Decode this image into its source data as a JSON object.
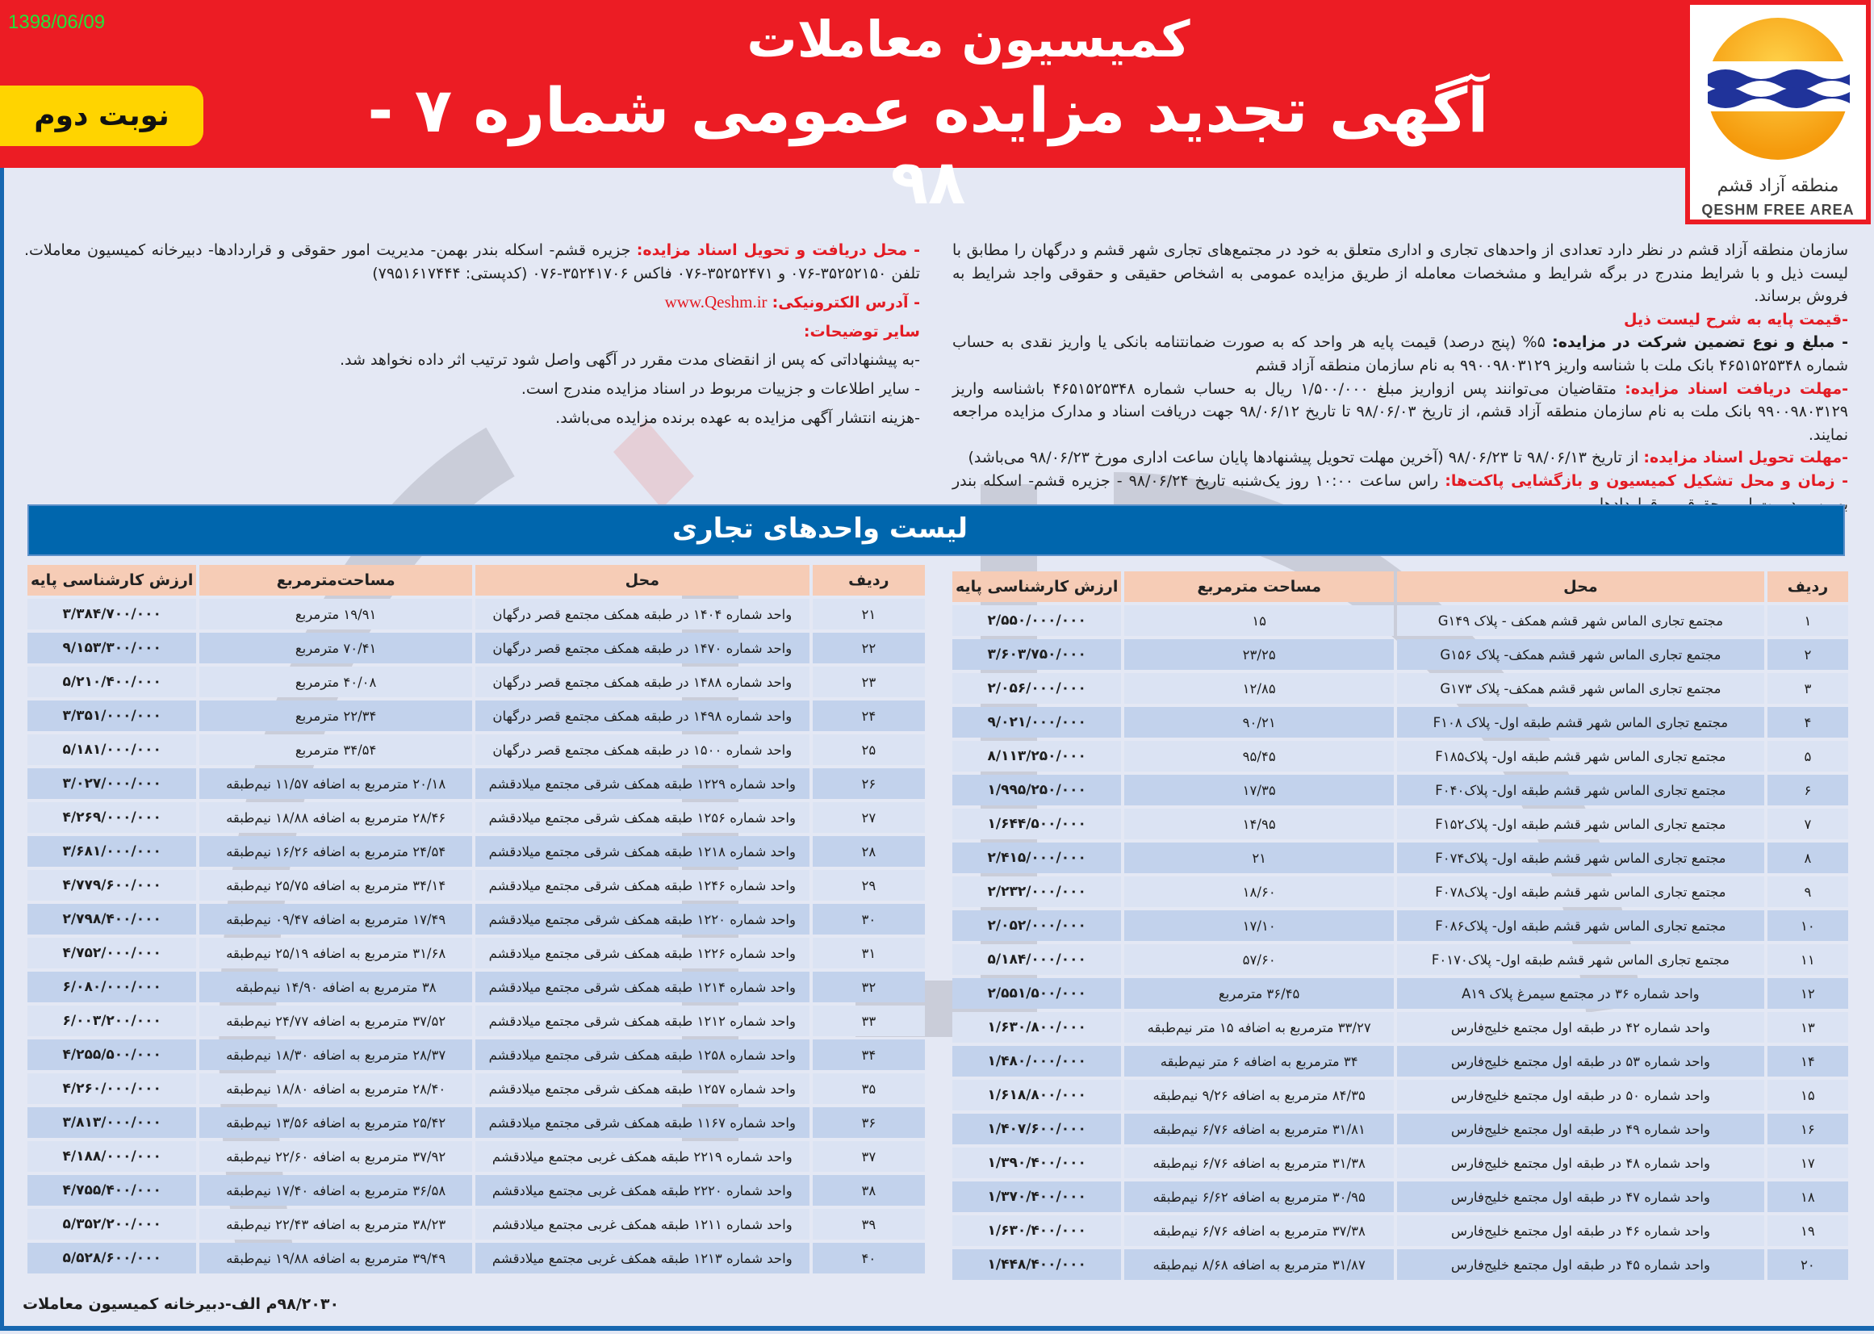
{
  "header": {
    "date": "1398/06/09",
    "badge": "نوبت دوم",
    "title_line1": "کمیسیون معاملات",
    "title_line2": "آگهی تجدید مزایده عمومی شماره ۷ - ۹۸",
    "logo": {
      "text_fa": "منطقه آزاد قشم",
      "text_en": "QESHM FREE AREA"
    }
  },
  "colors": {
    "header_red": "#ec1c24",
    "badge_yellow": "#ffd400",
    "label_red": "#e31b23",
    "bar_blue": "#0066ad",
    "table_header": "#f6ccb6",
    "row_light": "#dbe3f3",
    "row_dark": "#c2d2ec"
  },
  "right_column": {
    "intro": "سازمان منطقه آزاد قشم در نظر دارد تعدادی از واحدهای تجاری و اداری متعلق به خود در مجتمع‌های تجاری شهر قشم و درگهان را مطابق با لیست ذیل و با شرایط مندرج در برگه شرایط و مشخصات معامله از طریق مزایده عمومی به اشخاص حقیقی و حقوقی واجد شرایط به فروش برساند.",
    "base_price_label": "-قیمت پایه به شرح لیست ذیل",
    "guarantee_label": "- مبلغ و نوع تضمین شرکت در مزایده:",
    "guarantee_text": " ۵% (پنج درصد) قیمت پایه هر واحد که به صورت ضمانتنامه بانکی یا واریز نقدی به حساب شماره ۴۶۵۱۵۲۵۳۴۸ بانک ملت با شناسه واریز ۹۹۰۰۹۸۰۳۱۲۹ به نام سازمان منطقه آزاد قشم",
    "receive_label": "-مهلت دریافت اسناد مزایده:",
    "receive_text": " متقاضیان می‌توانند پس ازواریز مبلغ ۱/۵۰۰/۰۰۰ ریال به حساب شماره ۴۶۵۱۵۲۵۳۴۸ باشناسه واریز ۹۹۰۰۹۸۰۳۱۲۹ بانک ملت به نام سازمان منطقه آزاد قشم، از تاریخ ۹۸/۰۶/۰۳ تا تاریخ ۹۸/۰۶/۱۲ جهت دریافت اسناد و مدارک مزایده مراجعه نمایند.",
    "deliver_label": "-مهلت تحویل اسناد مزایده:",
    "deliver_text": " از تاریخ ۹۸/۰۶/۱۳ تا ۹۸/۰۶/۲۳ (آخرین مهلت تحویل پیشنهادها پایان ساعت اداری مورخ ۹۸/۰۶/۲۳ می‌باشد)",
    "opening_label": "- زمان و محل تشکیل کمیسیون و بازگشایی پاکت‌ها:",
    "opening_text": " راس ساعت ۱۰:۰۰ روز یک‌شنبه تاریخ ۹۸/۰۶/۲۴ - جزیره قشم- اسکله بندر بهمن- مدیریت امور حقوقی و قراردادها"
  },
  "left_column": {
    "location_label": "- محل دریافت و تحویل اسناد مزایده:",
    "location_text": " جزیره قشم- اسکله بندر بهمن- مدیریت امور حقوقی و قراردادها- دبیرخانه کمیسیون معاملات. تلفن ۳۵۲۵۲۱۵۰-۰۷۶ و ۳۵۲۵۲۴۷۱-۰۷۶ فاکس ۳۵۲۴۱۷۰۶-۰۷۶ (کدپستی: ۷۹۵۱۶۱۷۴۴۴)",
    "website_label": "- آدرس الکترونیکی:",
    "website": "www.Qeshm.ir",
    "notes_heading": "سایر توضیحات:",
    "notes": [
      "-به پیشنهاداتی که پس از انقضای مدت مقرر در آگهی واصل شود ترتیب اثر داده نخواهد شد.",
      "- سایر اطلاعات و جزییات مربوط در اسناد مزایده مندرج است.",
      "-هزینه انتشار آگهی مزایده به عهده برنده مزایده می‌باشد."
    ]
  },
  "list_title": "لیست واحدهای تجاری",
  "tables": {
    "right": {
      "headers": [
        "ردیف",
        "محل",
        "مساحت مترمربع",
        "ارزش کارشناسی پایه"
      ],
      "rows": [
        [
          "۱",
          "مجتمع تجاری الماس شهر قشم همکف - پلاک G۱۴۹",
          "۱۵",
          "۲/۵۵۰/۰۰۰/۰۰۰"
        ],
        [
          "۲",
          "مجتمع تجاری الماس شهر قشم همکف- پلاک G۱۵۶",
          "۲۳/۲۵",
          "۳/۶۰۳/۷۵۰/۰۰۰"
        ],
        [
          "۳",
          "مجتمع تجاری الماس شهر قشم همکف- پلاک G۱۷۳",
          "۱۲/۸۵",
          "۲/۰۵۶/۰۰۰/۰۰۰"
        ],
        [
          "۴",
          "مجتمع تجاری الماس شهر قشم طبقه اول- پلاک F۱۰۸",
          "۹۰/۲۱",
          "۹/۰۲۱/۰۰۰/۰۰۰"
        ],
        [
          "۵",
          "مجتمع تجاری الماس شهر قشم طبقه اول- پلاکF۱۸۵",
          "۹۵/۴۵",
          "۸/۱۱۳/۲۵۰/۰۰۰"
        ],
        [
          "۶",
          "مجتمع تجاری الماس شهر قشم طبقه اول- پلاکF۰۴۰",
          "۱۷/۳۵",
          "۱/۹۹۵/۲۵۰/۰۰۰"
        ],
        [
          "۷",
          "مجتمع تجاری الماس شهر قشم طبقه اول- پلاکF۱۵۲",
          "۱۴/۹۵",
          "۱/۶۴۴/۵۰۰/۰۰۰"
        ],
        [
          "۸",
          "مجتمع تجاری الماس شهر قشم طبقه اول- پلاکF۰۷۴",
          "۲۱",
          "۲/۴۱۵/۰۰۰/۰۰۰"
        ],
        [
          "۹",
          "مجتمع تجاری الماس شهر قشم طبقه اول- پلاکF۰۷۸",
          "۱۸/۶۰",
          "۲/۲۳۲/۰۰۰/۰۰۰"
        ],
        [
          "۱۰",
          "مجتمع تجاری الماس شهر قشم طبقه اول- پلاکF۰۸۶",
          "۱۷/۱۰",
          "۲/۰۵۲/۰۰۰/۰۰۰"
        ],
        [
          "۱۱",
          "مجتمع تجاری الماس شهر قشم طبقه اول- پلاکF۰۱۷۰",
          "۵۷/۶۰",
          "۵/۱۸۴/۰۰۰/۰۰۰"
        ],
        [
          "۱۲",
          "واحد شماره ۳۶ در مجتمع سیمرغ پلاک A۱۹",
          "۳۶/۴۵ مترمربع",
          "۲/۵۵۱/۵۰۰/۰۰۰"
        ],
        [
          "۱۳",
          "واحد شماره ۴۲ در طبقه اول مجتمع خلیج‌فارس",
          "۳۳/۲۷ مترمربع به اضافه ۱۵ متر نیم‌طبقه",
          "۱/۶۳۰/۸۰۰/۰۰۰"
        ],
        [
          "۱۴",
          "واحد شماره ۵۳ در طبقه اول مجتمع خلیج‌فارس",
          "۳۴ مترمربع به اضافه ۶ متر نیم‌طبقه",
          "۱/۴۸۰/۰۰۰/۰۰۰"
        ],
        [
          "۱۵",
          "واحد شماره ۵۰ در طبقه اول مجتمع خلیج‌فارس",
          "۸۴/۳۵ مترمربع به اضافه ۹/۲۶ نیم‌طبقه",
          "۱/۶۱۸/۸۰۰/۰۰۰"
        ],
        [
          "۱۶",
          "واحد شماره ۴۹ در طبقه اول مجتمع خلیج‌فارس",
          "۳۱/۸۱ مترمربع به اضافه ۶/۷۶ نیم‌طبقه",
          "۱/۴۰۷/۶۰۰/۰۰۰"
        ],
        [
          "۱۷",
          "واحد شماره ۴۸ در طبقه اول مجتمع خلیج‌فارس",
          "۳۱/۳۸ مترمربع به اضافه ۶/۷۶ نیم‌طبقه",
          "۱/۳۹۰/۴۰۰/۰۰۰"
        ],
        [
          "۱۸",
          "واحد شماره ۴۷ در طبقه اول مجتمع خلیج‌فارس",
          "۳۰/۹۵ مترمربع به اضافه ۶/۶۲ نیم‌طبقه",
          "۱/۳۷۰/۴۰۰/۰۰۰"
        ],
        [
          "۱۹",
          "واحد شماره ۴۶ در طبقه اول مجتمع خلیج‌فارس",
          "۳۷/۳۸ مترمربع به اضافه ۶/۷۶ نیم‌طبقه",
          "۱/۶۳۰/۴۰۰/۰۰۰"
        ],
        [
          "۲۰",
          "واحد شماره ۴۵ در طبقه اول مجتمع خلیج‌فارس",
          "۳۱/۸۷ مترمربع به اضافه ۸/۶۸ نیم‌طبقه",
          "۱/۴۴۸/۴۰۰/۰۰۰"
        ]
      ]
    },
    "left": {
      "headers": [
        "ردیف",
        "محل",
        "مساحت‌مترمربع",
        "ارزش کارشناسی پایه"
      ],
      "rows": [
        [
          "۲۱",
          "واحد شماره ۱۴۰۴ در طبقه همکف مجتمع قصر درگهان",
          "۱۹/۹۱ مترمربع",
          "۳/۳۸۴/۷۰۰/۰۰۰"
        ],
        [
          "۲۲",
          "واحد شماره ۱۴۷۰ در طبقه همکف مجتمع قصر درگهان",
          "۷۰/۴۱ مترمربع",
          "۹/۱۵۳/۳۰۰/۰۰۰"
        ],
        [
          "۲۳",
          "واحد شماره ۱۴۸۸ در طبقه همکف مجتمع قصر درگهان",
          "۴۰/۰۸ مترمربع",
          "۵/۲۱۰/۴۰۰/۰۰۰"
        ],
        [
          "۲۴",
          "واحد شماره ۱۴۹۸ در طبقه همکف مجتمع قصر درگهان",
          "۲۲/۳۴ مترمربع",
          "۳/۳۵۱/۰۰۰/۰۰۰"
        ],
        [
          "۲۵",
          "واحد شماره ۱۵۰۰ در طبقه همکف مجتمع قصر درگهان",
          "۳۴/۵۴ مترمربع",
          "۵/۱۸۱/۰۰۰/۰۰۰"
        ],
        [
          "۲۶",
          "واحد شماره ۱۲۲۹ طبقه همکف شرقی مجتمع میلادقشم",
          "۲۰/۱۸ مترمربع به اضافه ۱۱/۵۷ نیم‌طبقه",
          "۳/۰۲۷/۰۰۰/۰۰۰"
        ],
        [
          "۲۷",
          "واحد شماره ۱۲۵۶ طبقه همکف شرقی مجتمع میلادقشم",
          "۲۸/۴۶ مترمربع به اضافه ۱۸/۸۸ نیم‌طبقه",
          "۴/۲۶۹/۰۰۰/۰۰۰"
        ],
        [
          "۲۸",
          "واحد شماره ۱۲۱۸ طبقه همکف شرقی مجتمع میلادقشم",
          "۲۴/۵۴ مترمربع به اضافه ۱۶/۲۶ نیم‌طبقه",
          "۳/۶۸۱/۰۰۰/۰۰۰"
        ],
        [
          "۲۹",
          "واحد شماره ۱۲۴۶ طبقه همکف شرقی مجتمع میلادقشم",
          "۳۴/۱۴ مترمربع به اضافه ۲۵/۷۵ نیم‌طبقه",
          "۴/۷۷۹/۶۰۰/۰۰۰"
        ],
        [
          "۳۰",
          "واحد شماره ۱۲۲۰ طبقه همکف شرقی مجتمع میلادقشم",
          "۱۷/۴۹ مترمربع به اضافه ۰۹/۴۷ نیم‌طبقه",
          "۲/۷۹۸/۴۰۰/۰۰۰"
        ],
        [
          "۳۱",
          "واحد شماره ۱۲۲۶ طبقه همکف شرقی مجتمع میلادقشم",
          "۳۱/۶۸ مترمربع به اضافه ۲۵/۱۹ نیم‌طبقه",
          "۴/۷۵۲/۰۰۰/۰۰۰"
        ],
        [
          "۳۲",
          "واحد شماره ۱۲۱۴ طبقه همکف شرقی مجتمع میلادقشم",
          "۳۸ مترمربع به اضافه ۱۴/۹۰ نیم‌طبقه",
          "۶/۰۸۰/۰۰۰/۰۰۰"
        ],
        [
          "۳۳",
          "واحد شماره ۱۲۱۲ طبقه همکف شرقی مجتمع میلادقشم",
          "۳۷/۵۲ مترمربع به اضافه ۲۴/۷۷ نیم‌طبقه",
          "۶/۰۰۳/۲۰۰/۰۰۰"
        ],
        [
          "۳۴",
          "واحد شماره ۱۲۵۸ طبقه همکف شرقی مجتمع میلادقشم",
          "۲۸/۳۷ مترمربع به اضافه ۱۸/۳۰ نیم‌طبقه",
          "۴/۲۵۵/۵۰۰/۰۰۰"
        ],
        [
          "۳۵",
          "واحد شماره ۱۲۵۷ طبقه همکف شرقی مجتمع میلادقشم",
          "۲۸/۴۰ مترمربع به اضافه ۱۸/۸۰ نیم‌طبقه",
          "۴/۲۶۰/۰۰۰/۰۰۰"
        ],
        [
          "۳۶",
          "واحد شماره ۱۱۶۷ طبقه همکف شرقی مجتمع میلادقشم",
          "۲۵/۴۲ مترمربع به اضافه ۱۳/۵۶ نیم‌طبقه",
          "۳/۸۱۳/۰۰۰/۰۰۰"
        ],
        [
          "۳۷",
          "واحد شماره ۲۲۱۹ طبقه همکف غربی مجتمع میلادقشم",
          "۳۷/۹۲ مترمربع به اضافه ۲۲/۶۰ نیم‌طبقه",
          "۴/۱۸۸/۰۰۰/۰۰۰"
        ],
        [
          "۳۸",
          "واحد شماره ۲۲۲۰ طبقه همکف غربی مجتمع میلادقشم",
          "۳۶/۵۸ مترمربع به اضافه ۱۷/۴۰ نیم‌طبقه",
          "۴/۷۵۵/۴۰۰/۰۰۰"
        ],
        [
          "۳۹",
          "واحد شماره ۱۲۱۱ طبقه همکف غربی مجتمع میلادقشم",
          "۳۸/۲۳ مترمربع به اضافه ۲۲/۴۳ نیم‌طبقه",
          "۵/۳۵۲/۲۰۰/۰۰۰"
        ],
        [
          "۴۰",
          "واحد شماره ۱۲۱۳ طبقه همکف غربی مجتمع میلادقشم",
          "۳۹/۴۹ مترمربع به اضافه ۱۹/۸۸ نیم‌طبقه",
          "۵/۵۲۸/۶۰۰/۰۰۰"
        ]
      ]
    }
  },
  "footer": "۹۸/۲۰۳۰م الف-دبیرخانه کمیسیون معاملات"
}
